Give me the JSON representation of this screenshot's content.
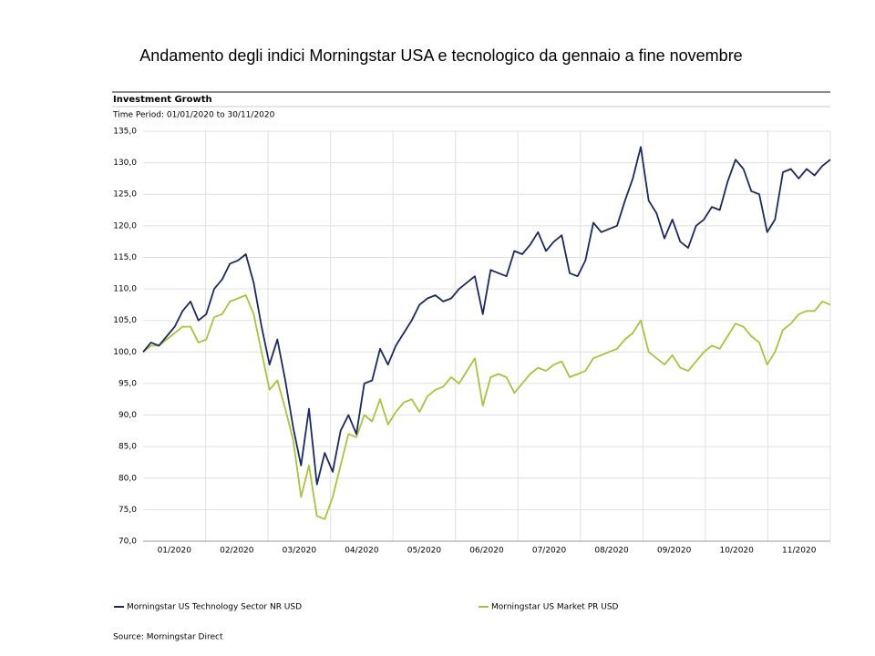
{
  "chart_data": {
    "type": "line",
    "title": "Andamento degli indici Morningstar USA e tecnologico da gennaio a fine novembre",
    "subtitle": "Investment Growth",
    "period": "Time Period: 01/01/2020 to 30/11/2020",
    "source": "Source: Morningstar Direct",
    "x_labels": [
      "01/2020",
      "02/2020",
      "03/2020",
      "04/2020",
      "05/2020",
      "06/2020",
      "07/2020",
      "08/2020",
      "09/2020",
      "10/2020",
      "11/2020"
    ],
    "ylim": [
      70,
      135
    ],
    "yticks": [
      {
        "value": 70,
        "label": "70,0"
      },
      {
        "value": 75,
        "label": "75,0"
      },
      {
        "value": 80,
        "label": "80,0"
      },
      {
        "value": 85,
        "label": "85,0"
      },
      {
        "value": 90,
        "label": "90,0"
      },
      {
        "value": 95,
        "label": "95,0"
      },
      {
        "value": 100,
        "label": "100,0"
      },
      {
        "value": 105,
        "label": "105,0"
      },
      {
        "value": 110,
        "label": "110,0"
      },
      {
        "value": 115,
        "label": "115,0"
      },
      {
        "value": 120,
        "label": "120,0"
      },
      {
        "value": 125,
        "label": "125,0"
      },
      {
        "value": 130,
        "label": "130,0"
      },
      {
        "value": 135,
        "label": "135,0"
      }
    ],
    "grid": true,
    "series": [
      {
        "name": "Morningstar US Technology Sector NR USD",
        "color": "#1b2a5c",
        "values": [
          100,
          101.5,
          101,
          102.5,
          104,
          106.5,
          108,
          105,
          106,
          110,
          111.5,
          114,
          114.5,
          115.5,
          111,
          104,
          98,
          102,
          95.5,
          88,
          82,
          91,
          79,
          84,
          81,
          87.5,
          90,
          87,
          95,
          95.5,
          100.5,
          98,
          101,
          103,
          105,
          107.5,
          108.5,
          109,
          108,
          108.5,
          110,
          111,
          112,
          106,
          113,
          112.5,
          112,
          116,
          115.5,
          117,
          119,
          116,
          117.5,
          118.5,
          112.5,
          112,
          114.5,
          120.5,
          119,
          119.5,
          120,
          124,
          127.5,
          132.5,
          124,
          122,
          118,
          121,
          117.5,
          116.5,
          120,
          121,
          123,
          122.5,
          127,
          130.5,
          129,
          125.5,
          125,
          119,
          121,
          128.5,
          129,
          127.5,
          129,
          128,
          129.5,
          130.5
        ]
      },
      {
        "name": "Morningstar US Market PR USD",
        "color": "#a9c23f",
        "values": [
          100,
          101,
          101,
          102,
          103,
          104,
          104,
          101.5,
          102,
          105.5,
          106,
          108,
          108.5,
          109,
          106,
          100,
          94,
          95.5,
          91,
          86,
          77,
          82,
          74,
          73.5,
          77,
          82,
          87,
          86.5,
          90,
          89,
          92.5,
          88.5,
          90.5,
          92,
          92.5,
          90.5,
          93,
          94,
          94.5,
          96,
          95,
          97,
          99,
          91.5,
          96,
          96.5,
          96,
          93.5,
          95,
          96.5,
          97.5,
          97,
          98,
          98.5,
          96,
          96.5,
          97,
          99,
          99.5,
          100,
          100.5,
          102,
          103,
          105,
          100,
          99,
          98,
          99.5,
          97.5,
          97,
          98.5,
          100,
          101,
          100.5,
          102.5,
          104.5,
          104,
          102.5,
          101.5,
          98,
          100,
          103.5,
          104.5,
          106,
          106.5,
          106.5,
          108,
          107.5
        ]
      }
    ]
  }
}
